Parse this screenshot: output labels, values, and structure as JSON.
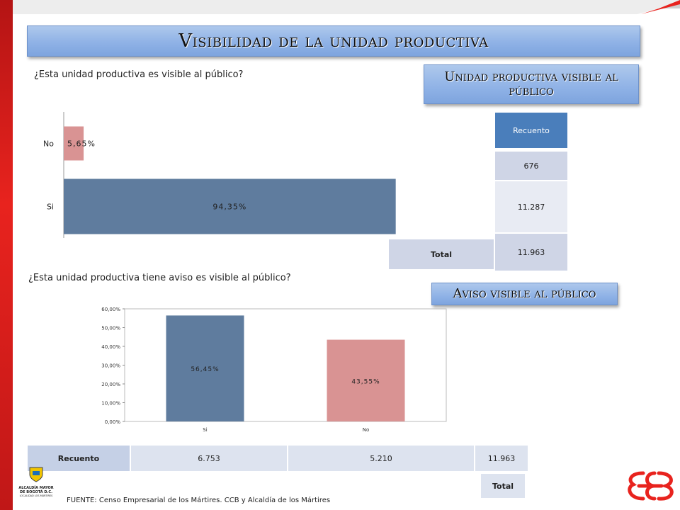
{
  "title": "Visibilidad de la unidad productiva",
  "section1": {
    "question": "¿Esta unidad productiva es visible al público?",
    "box_title": "Unidad productiva visible al público",
    "table": {
      "header": "Recuento",
      "values": [
        "676",
        "11.287",
        "11.963"
      ],
      "total_label": "Total"
    }
  },
  "section2": {
    "question": "¿Esta unidad productiva tiene aviso es visible al público?",
    "box_title": "Aviso visible al público",
    "table": {
      "row_label": "Recuento",
      "values": [
        "6.753",
        "5.210",
        "11.963"
      ],
      "total_label": "Total"
    }
  },
  "footer": {
    "source": "FUENTE:  Censo Empresarial de los Mártires. CCB y Alcaldía de los Mártires",
    "logo_text": [
      "ALCALDÍA MAYOR",
      "DE BOGOTÁ D.C.",
      "LOCALIDAD LOS MÁRTIRES"
    ]
  },
  "colors": {
    "blue_bar": "#5f7c9e",
    "pink_bar": "#d99393",
    "title_blue": "#8fb2e6",
    "red_accent": "#e8231e"
  },
  "chart_data": [
    {
      "type": "bar",
      "orientation": "horizontal",
      "categories": [
        "No",
        "Si"
      ],
      "values": [
        5.65,
        94.35
      ],
      "data_labels": [
        "5,65%",
        "94,35%"
      ],
      "colors": [
        "#d99393",
        "#5f7c9e"
      ],
      "xlim": [
        0,
        100
      ]
    },
    {
      "type": "bar",
      "categories": [
        "Si",
        "No"
      ],
      "values": [
        56.45,
        43.55
      ],
      "data_labels": [
        "56,45%",
        "43,55%"
      ],
      "colors": [
        "#5f7c9e",
        "#d99393"
      ],
      "ylim": [
        0,
        60
      ],
      "yticks": [
        "0,00%",
        "10,00%",
        "20,00%",
        "30,00%",
        "40,00%",
        "50,00%",
        "60,00%"
      ],
      "grid": false
    }
  ]
}
